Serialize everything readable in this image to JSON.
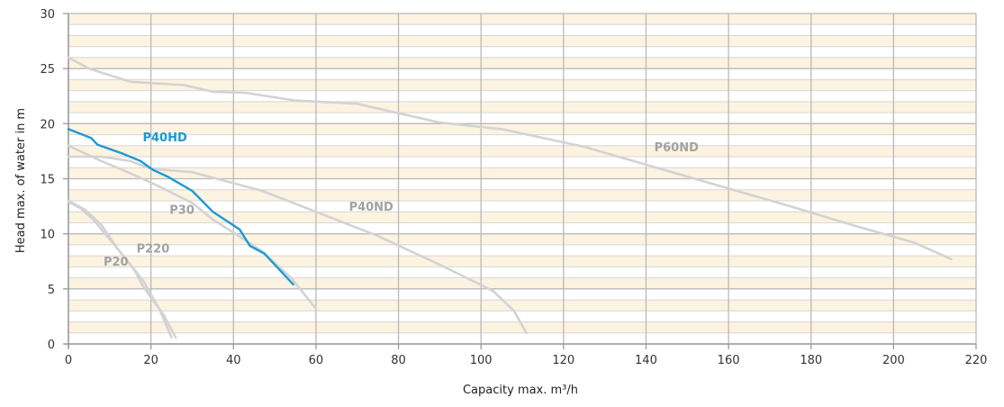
{
  "chart_data": {
    "type": "line",
    "xlabel": "Capacity max. m³/h",
    "ylabel": "Head max. of water in m",
    "xlim": [
      0,
      220
    ],
    "ylim": [
      0,
      30
    ],
    "x_ticks": [
      0,
      20,
      40,
      60,
      80,
      100,
      120,
      140,
      160,
      180,
      200,
      220
    ],
    "y_ticks": [
      0,
      5,
      10,
      15,
      20,
      25,
      30
    ],
    "grid": true,
    "colors": {
      "band_light": "#fdf3e1",
      "band_white": "#ffffff",
      "minor_grid": "#d6d6d6",
      "major_grid": "#b9b9b9",
      "axis": "#9a9a9a",
      "gray_curve": "#d3d3d3",
      "gray_label": "#a2a2a2",
      "highlight": "#1a9ad6"
    },
    "series": [
      {
        "name": "P60ND",
        "color": "#d3d3d3",
        "label_color": "#a2a2a2",
        "label_at": [
          142,
          17.5
        ],
        "x": [
          0,
          5,
          15,
          28,
          35,
          43,
          55,
          70,
          90,
          105,
          125,
          150,
          175,
          190,
          205,
          214
        ],
        "y": [
          26,
          25,
          23.8,
          23.5,
          22.9,
          22.8,
          22.1,
          21.8,
          20.1,
          19.5,
          17.9,
          15.2,
          12.5,
          10.8,
          9.2,
          7.7
        ]
      },
      {
        "name": "P40ND",
        "color": "#d3d3d3",
        "label_color": "#a2a2a2",
        "label_at": [
          68,
          12.1
        ],
        "x": [
          0,
          8,
          15,
          20,
          30,
          47,
          60,
          75,
          90,
          103,
          108,
          111
        ],
        "y": [
          17,
          17,
          16.6,
          15.9,
          15.6,
          13.9,
          12,
          9.8,
          7.2,
          4.8,
          3,
          1
        ]
      },
      {
        "name": "P30",
        "color": "#d3d3d3",
        "label_color": "#a2a2a2",
        "label_at": [
          24.5,
          11.8
        ],
        "x": [
          0,
          8,
          15,
          22,
          30,
          35,
          40,
          47,
          54,
          60
        ],
        "y": [
          18,
          16.6,
          15.5,
          14.3,
          12.8,
          11.3,
          10.1,
          8.4,
          6,
          3.2
        ]
      },
      {
        "name": "P220",
        "color": "#d3d3d3",
        "label_color": "#a2a2a2",
        "label_at": [
          16.5,
          8.3
        ],
        "x": [
          0,
          4,
          8,
          12,
          16,
          18,
          20,
          23,
          26
        ],
        "y": [
          13,
          12.2,
          10.8,
          8.6,
          6.7,
          5.3,
          4.2,
          2.7,
          0.6
        ]
      },
      {
        "name": "P20",
        "color": "#d3d3d3",
        "label_color": "#a2a2a2",
        "label_at": [
          8.5,
          7.1
        ],
        "x": [
          0,
          3,
          6,
          10,
          14,
          18,
          20,
          22,
          25
        ],
        "y": [
          12.9,
          12.3,
          11.3,
          9.5,
          7.7,
          5.8,
          4.5,
          3.2,
          0.6
        ]
      },
      {
        "name": "P40HD",
        "color": "#1a9ad6",
        "label_color": "#1a9ad6",
        "label_at": [
          18,
          18.4
        ],
        "x": [
          0,
          5.5,
          7,
          13,
          17.5,
          20.5,
          24,
          30,
          35,
          41.5,
          44,
          47.5,
          51,
          54.5
        ],
        "y": [
          19.5,
          18.7,
          18.1,
          17.3,
          16.6,
          15.8,
          15.2,
          13.9,
          12,
          10.4,
          8.9,
          8.2,
          6.8,
          5.4
        ]
      }
    ]
  }
}
